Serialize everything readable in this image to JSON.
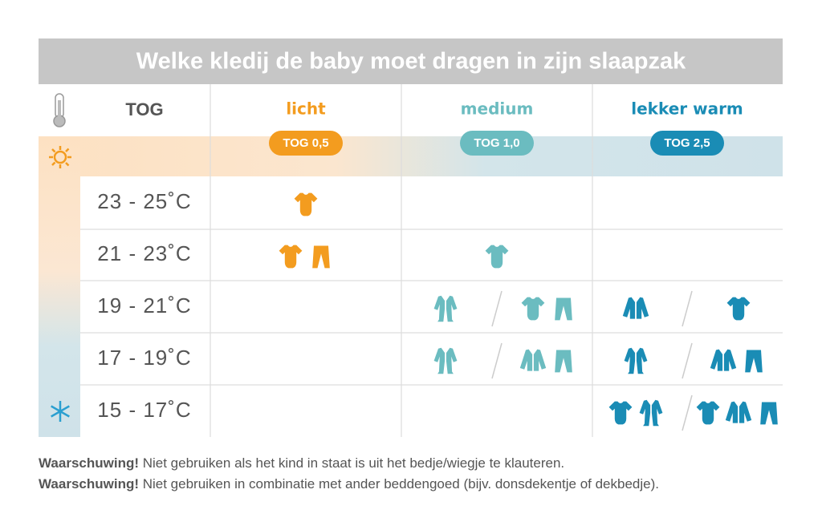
{
  "title": "Welke kledij de baby moet dragen in zijn slaapzak",
  "header": {
    "tog": "TOG"
  },
  "columns": [
    {
      "name": "licht",
      "badge": "TOG 0,5"
    },
    {
      "name": "medium",
      "badge": "TOG 1,0"
    },
    {
      "name": "lekker warm",
      "badge": "TOG 2,5"
    }
  ],
  "rows": [
    "23 - 25˚C",
    "21 - 23˚C",
    "19 - 21˚C",
    "17 - 19˚C",
    "15 - 17˚C"
  ],
  "warnings": [
    {
      "bold": "Waarschuwing!",
      "text": " Niet gebruiken als het kind in staat is uit het bedje/wiegje te klauteren."
    },
    {
      "bold": "Waarschuwing!",
      "text": " Niet gebruiken in combinatie met ander beddengoed (bijv. donsdekentje of dekbedje)."
    }
  ]
}
